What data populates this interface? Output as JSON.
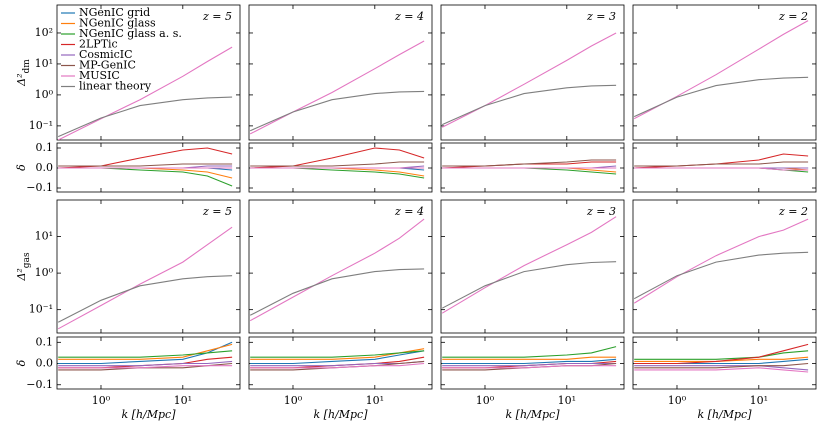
{
  "legend": [
    {
      "name": "NGenIC grid",
      "color": "#1f77b4"
    },
    {
      "name": "NGenIC glass",
      "color": "#ff7f0e"
    },
    {
      "name": "NGenIC glass a. s.",
      "color": "#2ca02c"
    },
    {
      "name": "2LPTic",
      "color": "#d62728"
    },
    {
      "name": "CosmicIC",
      "color": "#9467bd"
    },
    {
      "name": "MP-GenIC",
      "color": "#8c564b"
    },
    {
      "name": "MUSIC",
      "color": "#e377c2"
    },
    {
      "name": "linear theory",
      "color": "#7f7f7f"
    }
  ],
  "x": [
    0.3,
    1,
    3,
    10,
    20,
    40
  ],
  "xlim": [
    0.29,
    50
  ],
  "xticks": [
    {
      "value": 1,
      "label": "10⁰"
    },
    {
      "value": 10,
      "label": "10¹"
    }
  ],
  "x_label": "k [h/Mpc]",
  "rows": [
    {
      "y_label": {
        "symbol": "Δ²",
        "subscript": "dm"
      },
      "log": true,
      "ylim": [
        0.035,
        800
      ],
      "yticks": [
        {
          "value": 0.1,
          "label": "10⁻¹"
        },
        {
          "value": 1,
          "label": "10⁰"
        },
        {
          "value": 10,
          "label": "10¹"
        },
        {
          "value": 100,
          "label": "10²"
        }
      ],
      "panels": [
        {
          "title": "z = 5",
          "series": [
            {
              "ref": 6,
              "values": [
                0.035,
                0.17,
                0.7,
                4,
                12,
                35
              ]
            },
            {
              "ref": 7,
              "values": [
                0.045,
                0.18,
                0.45,
                0.7,
                0.8,
                0.85
              ]
            }
          ]
        },
        {
          "title": "z = 4",
          "series": [
            {
              "ref": 6,
              "values": [
                0.055,
                0.28,
                1.2,
                7,
                20,
                55
              ]
            },
            {
              "ref": 7,
              "values": [
                0.07,
                0.28,
                0.7,
                1.1,
                1.25,
                1.3
              ]
            }
          ]
        },
        {
          "title": "z = 3",
          "series": [
            {
              "ref": 6,
              "values": [
                0.09,
                0.45,
                2.2,
                13,
                38,
                100
              ]
            },
            {
              "ref": 7,
              "values": [
                0.11,
                0.45,
                1.1,
                1.7,
                1.95,
                2.05
              ]
            }
          ]
        },
        {
          "title": "z = 2",
          "series": [
            {
              "ref": 6,
              "values": [
                0.17,
                0.9,
                4.5,
                30,
                90,
                250
              ]
            },
            {
              "ref": 7,
              "values": [
                0.2,
                0.85,
                2,
                3.1,
                3.5,
                3.7
              ]
            }
          ]
        }
      ]
    },
    {
      "y_label": {
        "symbol": "δ"
      },
      "log": false,
      "ylim": [
        -0.12,
        0.125
      ],
      "yticks": [
        0.1,
        {
          "value": 0,
          "label": "0.0"
        },
        {
          "value": -0.1,
          "label": "−0.1"
        }
      ],
      "panels": [
        {
          "series": [
            {
              "ref": 0,
              "values": [
                0,
                0,
                0,
                0,
                0,
                -0.01
              ]
            },
            {
              "ref": 1,
              "values": [
                0,
                0,
                0,
                -0.01,
                -0.02,
                -0.05
              ]
            },
            {
              "ref": 2,
              "values": [
                0,
                0,
                -0.01,
                -0.02,
                -0.04,
                -0.09
              ]
            },
            {
              "ref": 3,
              "values": [
                0,
                0.01,
                0.05,
                0.09,
                0.1,
                0.07
              ]
            },
            {
              "ref": 4,
              "values": [
                0,
                0,
                0,
                0,
                0.01,
                0.01
              ]
            },
            {
              "ref": 5,
              "values": [
                0.01,
                0.01,
                0.01,
                0.02,
                0.02,
                0.02
              ]
            },
            {
              "ref": 6,
              "values": [
                0,
                0,
                0,
                0,
                0,
                0
              ]
            }
          ]
        },
        {
          "series": [
            {
              "ref": 0,
              "values": [
                0,
                0,
                0,
                0,
                0,
                -0.01
              ]
            },
            {
              "ref": 1,
              "values": [
                0,
                0,
                0,
                -0.01,
                -0.02,
                -0.04
              ]
            },
            {
              "ref": 2,
              "values": [
                0,
                0,
                -0.01,
                -0.02,
                -0.03,
                -0.05
              ]
            },
            {
              "ref": 3,
              "values": [
                0,
                0.01,
                0.05,
                0.1,
                0.09,
                0.05
              ]
            },
            {
              "ref": 4,
              "values": [
                0,
                0,
                0,
                0,
                0,
                0.01
              ]
            },
            {
              "ref": 5,
              "values": [
                0.01,
                0.01,
                0.01,
                0.02,
                0.03,
                0.03
              ]
            },
            {
              "ref": 6,
              "values": [
                0,
                0,
                0,
                0,
                0,
                0
              ]
            }
          ]
        },
        {
          "series": [
            {
              "ref": 0,
              "values": [
                0,
                0,
                0,
                0,
                0,
                0
              ]
            },
            {
              "ref": 1,
              "values": [
                0,
                0,
                0,
                0,
                -0.01,
                -0.02
              ]
            },
            {
              "ref": 2,
              "values": [
                0,
                0,
                0,
                -0.01,
                -0.02,
                -0.03
              ]
            },
            {
              "ref": 3,
              "values": [
                0,
                0.01,
                0.02,
                0.02,
                0.03,
                0.03
              ]
            },
            {
              "ref": 4,
              "values": [
                0,
                0,
                0,
                0,
                0,
                0.01
              ]
            },
            {
              "ref": 5,
              "values": [
                0.01,
                0.01,
                0.02,
                0.03,
                0.04,
                0.04
              ]
            },
            {
              "ref": 6,
              "values": [
                0,
                0,
                0,
                0,
                0,
                0
              ]
            }
          ]
        },
        {
          "series": [
            {
              "ref": 0,
              "values": [
                0,
                0,
                0,
                0,
                0,
                0
              ]
            },
            {
              "ref": 1,
              "values": [
                0,
                0,
                0,
                0,
                0,
                -0.01
              ]
            },
            {
              "ref": 2,
              "values": [
                0,
                0,
                0,
                0,
                -0.01,
                -0.02
              ]
            },
            {
              "ref": 3,
              "values": [
                0,
                0.01,
                0.02,
                0.04,
                0.07,
                0.06
              ]
            },
            {
              "ref": 4,
              "values": [
                0,
                0,
                0,
                0,
                0,
                0
              ]
            },
            {
              "ref": 5,
              "values": [
                0.01,
                0.01,
                0.02,
                0.02,
                0.03,
                0.03
              ]
            },
            {
              "ref": 6,
              "values": [
                0,
                0,
                0,
                0,
                -0.01,
                -0.01
              ]
            }
          ]
        }
      ]
    },
    {
      "y_label": {
        "symbol": "Δ²",
        "subscript": "gas"
      },
      "log": true,
      "ylim": [
        0.023,
        100
      ],
      "yticks": [
        {
          "value": 0.1,
          "label": "10⁻¹"
        },
        {
          "value": 1,
          "label": "10⁰"
        },
        {
          "value": 10,
          "label": "10¹"
        }
      ],
      "panels": [
        {
          "title": "z = 5",
          "series": [
            {
              "ref": 6,
              "values": [
                0.03,
                0.13,
                0.5,
                2,
                6,
                18
              ]
            },
            {
              "ref": 7,
              "values": [
                0.045,
                0.18,
                0.45,
                0.7,
                0.8,
                0.85
              ]
            }
          ]
        },
        {
          "title": "z = 4",
          "series": [
            {
              "ref": 6,
              "values": [
                0.05,
                0.22,
                0.85,
                3.5,
                9,
                30
              ]
            },
            {
              "ref": 7,
              "values": [
                0.07,
                0.28,
                0.7,
                1.1,
                1.25,
                1.3
              ]
            }
          ]
        },
        {
          "title": "z = 3",
          "series": [
            {
              "ref": 6,
              "values": [
                0.08,
                0.4,
                1.6,
                6,
                13,
                35
              ]
            },
            {
              "ref": 7,
              "values": [
                0.11,
                0.45,
                1.1,
                1.7,
                1.95,
                2.05
              ]
            }
          ]
        },
        {
          "title": "z = 2",
          "series": [
            {
              "ref": 6,
              "values": [
                0.15,
                0.8,
                3,
                10,
                15,
                30
              ]
            },
            {
              "ref": 7,
              "values": [
                0.2,
                0.85,
                2,
                3.1,
                3.5,
                3.7
              ]
            }
          ]
        }
      ]
    },
    {
      "y_label": {
        "symbol": "δ"
      },
      "log": false,
      "ylim": [
        -0.12,
        0.125
      ],
      "yticks": [
        0.1,
        {
          "value": 0,
          "label": "0.0"
        },
        {
          "value": -0.1,
          "label": "−0.1"
        }
      ],
      "panels": [
        {
          "series": [
            {
              "ref": 0,
              "values": [
                0,
                0,
                0.01,
                0.02,
                0.05,
                0.1
              ]
            },
            {
              "ref": 1,
              "values": [
                0.02,
                0.02,
                0.02,
                0.03,
                0.06,
                0.09
              ]
            },
            {
              "ref": 2,
              "values": [
                0.03,
                0.03,
                0.03,
                0.04,
                0.05,
                0.06
              ]
            },
            {
              "ref": 3,
              "values": [
                -0.02,
                -0.02,
                -0.01,
                0,
                0.02,
                0.03
              ]
            },
            {
              "ref": 4,
              "values": [
                -0.01,
                -0.01,
                -0.01,
                0,
                0,
                0.01
              ]
            },
            {
              "ref": 5,
              "values": [
                -0.03,
                -0.03,
                -0.02,
                -0.02,
                -0.01,
                0
              ]
            },
            {
              "ref": 6,
              "values": [
                -0.02,
                -0.02,
                -0.02,
                -0.01,
                -0.01,
                -0.01
              ]
            }
          ]
        },
        {
          "series": [
            {
              "ref": 0,
              "values": [
                0,
                0,
                0.01,
                0.02,
                0.04,
                0.06
              ]
            },
            {
              "ref": 1,
              "values": [
                0.02,
                0.02,
                0.02,
                0.03,
                0.05,
                0.07
              ]
            },
            {
              "ref": 2,
              "values": [
                0.03,
                0.03,
                0.03,
                0.04,
                0.05,
                0.06
              ]
            },
            {
              "ref": 3,
              "values": [
                -0.02,
                -0.02,
                -0.01,
                0,
                0.01,
                0.03
              ]
            },
            {
              "ref": 4,
              "values": [
                -0.01,
                -0.01,
                -0.01,
                0,
                0,
                0.01
              ]
            },
            {
              "ref": 5,
              "values": [
                -0.03,
                -0.03,
                -0.02,
                -0.01,
                0,
                0.01
              ]
            },
            {
              "ref": 6,
              "values": [
                -0.02,
                -0.02,
                -0.02,
                -0.01,
                -0.01,
                0
              ]
            }
          ]
        },
        {
          "series": [
            {
              "ref": 0,
              "values": [
                0,
                0,
                0,
                0.01,
                0.01,
                0.02
              ]
            },
            {
              "ref": 1,
              "values": [
                0.02,
                0.02,
                0.02,
                0.02,
                0.03,
                0.03
              ]
            },
            {
              "ref": 2,
              "values": [
                0.03,
                0.03,
                0.03,
                0.04,
                0.05,
                0.08
              ]
            },
            {
              "ref": 3,
              "values": [
                -0.02,
                -0.02,
                -0.01,
                0,
                0,
                0.01
              ]
            },
            {
              "ref": 4,
              "values": [
                -0.01,
                -0.01,
                -0.01,
                0,
                0,
                0
              ]
            },
            {
              "ref": 5,
              "values": [
                -0.03,
                -0.03,
                -0.02,
                -0.01,
                -0.01,
                0
              ]
            },
            {
              "ref": 6,
              "values": [
                -0.02,
                -0.02,
                -0.02,
                -0.01,
                -0.01,
                -0.01
              ]
            }
          ]
        },
        {
          "series": [
            {
              "ref": 0,
              "values": [
                0,
                0,
                0,
                0,
                0.01,
                0.02
              ]
            },
            {
              "ref": 1,
              "values": [
                0.01,
                0.01,
                0.01,
                0.02,
                0.02,
                0.03
              ]
            },
            {
              "ref": 2,
              "values": [
                0.02,
                0.02,
                0.02,
                0.03,
                0.05,
                0.06
              ]
            },
            {
              "ref": 3,
              "values": [
                0,
                0,
                0.01,
                0.03,
                0.06,
                0.09
              ]
            },
            {
              "ref": 4,
              "values": [
                -0.01,
                -0.01,
                -0.01,
                -0.01,
                -0.02,
                -0.03
              ]
            },
            {
              "ref": 5,
              "values": [
                -0.02,
                -0.02,
                -0.02,
                -0.01,
                -0.01,
                0
              ]
            },
            {
              "ref": 6,
              "values": [
                -0.03,
                -0.03,
                -0.03,
                -0.02,
                -0.03,
                -0.04
              ]
            }
          ]
        }
      ]
    }
  ]
}
